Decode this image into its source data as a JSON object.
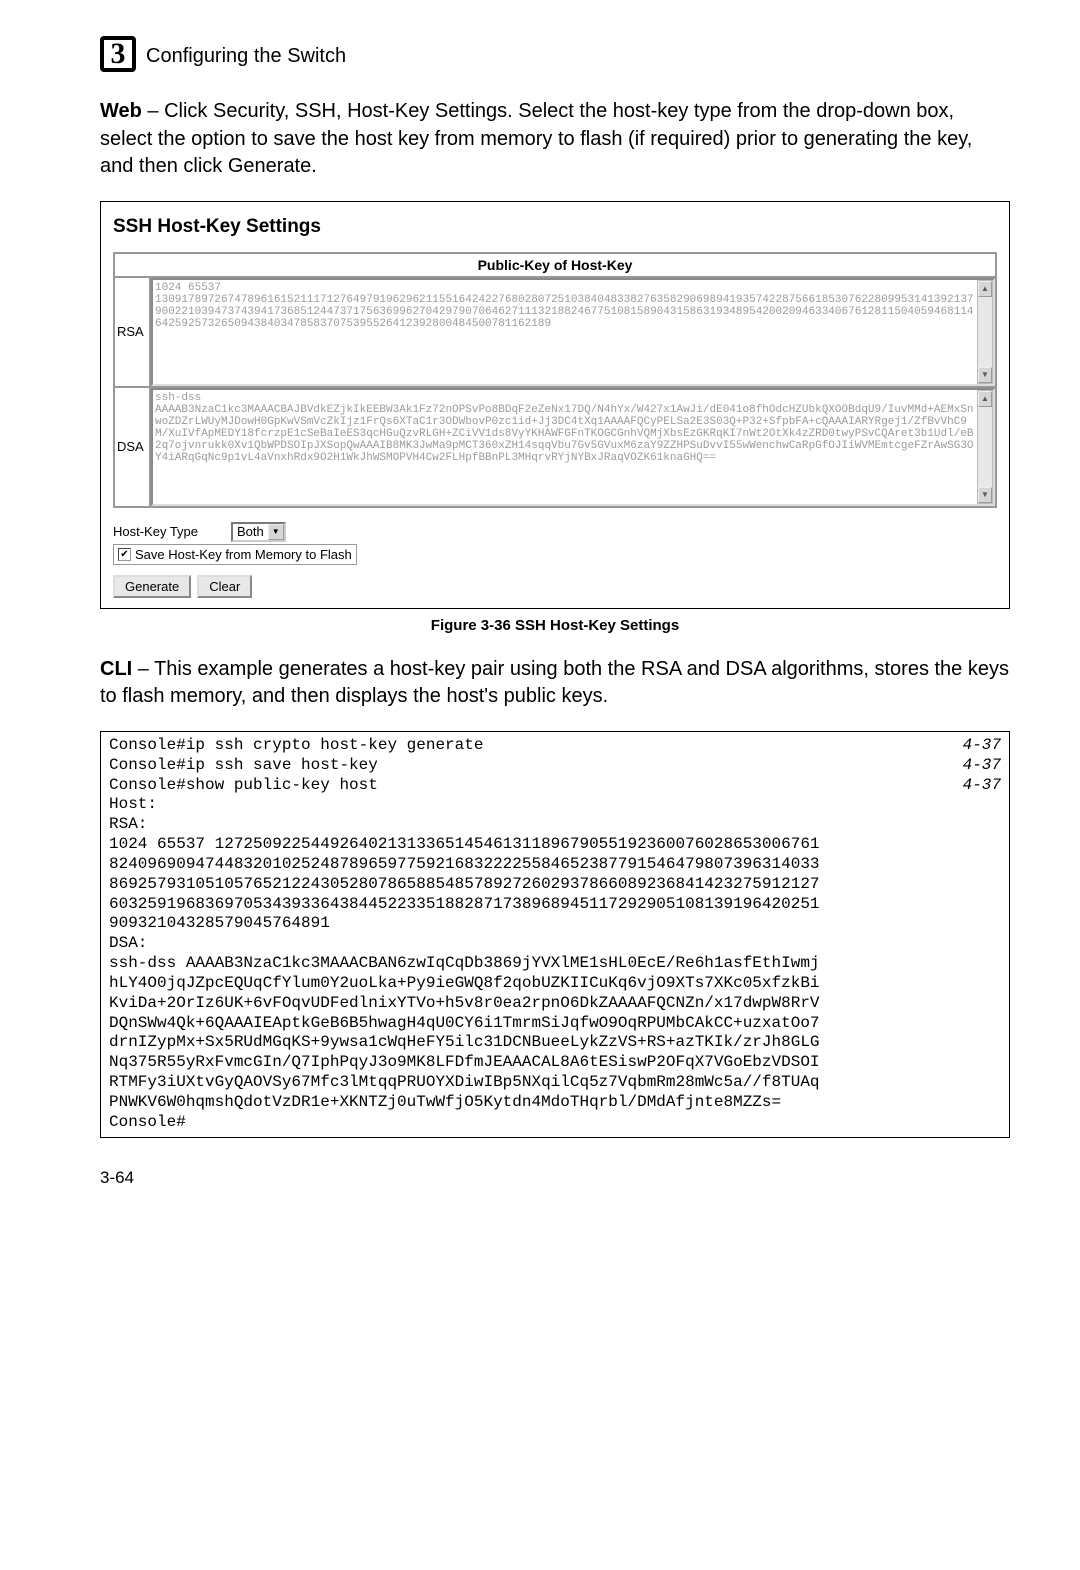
{
  "header": {
    "chapter_num": "3",
    "chapter_title": "Configuring the Switch"
  },
  "intro": {
    "label": "Web",
    "text": " – Click Security, SSH, Host-Key Settings. Select the host-key type from the drop-down box, select the option to save the host key from memory to flash (if required) prior to generating the key, and then click Generate."
  },
  "screenshot": {
    "title": "SSH Host-Key Settings",
    "table_header": "Public-Key of Host-Key",
    "rsa_label": "RSA",
    "dsa_label": "DSA",
    "rsa_value": "1024 65537\n13091789726747896161521117127649791962962115516424227680280725103840483382763582906989419357422875661853076228099531413921379002210394737439417368512447371756369962704297907064627111321882467751081589043158631934895420020946334067612811504059468114642592573265094384034785837075395526412392800484500781162189",
    "dsa_value": "ssh-dss\nAAAAB3NzaC1kc3MAAACBAJBVdkEZjkIkEEBW3Ak1Fz72nOPSvPo8BDqF2eZeNx17DQ/N4hYx/W427x1AwJi/dE041o8fhOdcHZUbkQXOOBdqU9/IuvMMd+AEMxSnwoZDZrLWUyMJDowH0GpKwVSmVcZkIjz1FrQs6XTaC1r3ODWbovP0zc1id+Jj3DC4tXq1AAAAFQCyPELSa2E3S03Q+P32+SfpbFA+cQAAAIARYRgej1/ZfBvVhC9M/XuIVfApMEDY18fcrzpE1cSeBaIeES3qcHGuQzvRLGH+ZCiVV1ds8VyYKHAWFGFnTKOGCGnhVQMjXbsEzGKRqKI7nWt2OtXk4zZRD0twyPSvCQAret3b1Udl/eB2q7ojvnrukk0Xv1QbWPDSOIpJXSopQwAAAIB8MK3JwMa9pMCT360xZH14sqqVbu7Gv5GVuxM6zaY9ZZHPSuDvvI55wWenchwCaRpGfOJIiWVMEmtcgeFZrAwSG3OY4iARqGqNc9p1vL4aVnxhRdx9O2H1WkJhWSMOPVH4Cw2FLHpfBBnPL3MHqrvRYjNYBxJRaqVOZK61knaGHQ==",
    "host_key_type_label": "Host-Key Type",
    "host_key_type_value": "Both",
    "save_label": "Save Host-Key from Memory to Flash",
    "generate_btn": "Generate",
    "clear_btn": "Clear"
  },
  "caption": "Figure 3-36  SSH Host-Key Settings",
  "cli": {
    "label": "CLI",
    "text": " – This example generates a host-key pair using both the RSA and DSA algorithms, stores the keys to flash memory, and then displays the host's public keys."
  },
  "code": {
    "lines": [
      {
        "l": "Console#ip ssh crypto host-key generate",
        "r": "4-37"
      },
      {
        "l": "Console#ip ssh save host-key",
        "r": "4-37"
      },
      {
        "l": "Console#show public-key host",
        "r": "4-37"
      },
      {
        "l": "Host:",
        "r": ""
      },
      {
        "l": "RSA:",
        "r": ""
      },
      {
        "l": "1024 65537 127250922544926402131336514546131189679055192360076028653006761",
        "r": ""
      },
      {
        "l": "82409690947448320102524878965977592168322225584652387791546479807396314033",
        "r": ""
      },
      {
        "l": "86925793105105765212243052807865885485789272602937866089236841423275912127",
        "r": ""
      },
      {
        "l": "60325919683697053439336438445223351882871738968945117292905108139196420251",
        "r": ""
      },
      {
        "l": "90932104328579045764891",
        "r": ""
      },
      {
        "l": "DSA:",
        "r": ""
      },
      {
        "l": "ssh-dss AAAAB3NzaC1kc3MAAACBAN6zwIqCqDb3869jYVXlME1sHL0EcE/Re6h1asfEthIwmj",
        "r": ""
      },
      {
        "l": "hLY4O0jqJZpcEQUqCfYlum0Y2uoLka+Py9ieGWQ8f2qobUZKIICuKq6vjO9XTs7XKc05xfzkBi",
        "r": ""
      },
      {
        "l": "KviDa+2OrIz6UK+6vFOqvUDFedlnixYTVo+h5v8r0ea2rpnO6DkZAAAAFQCNZn/x17dwpW8RrV",
        "r": ""
      },
      {
        "l": "DQnSWw4Qk+6QAAAIEAptkGeB6B5hwagH4qU0CY6i1TmrmSiJqfwO9OqRPUMbCAkCC+uzxatOo7",
        "r": ""
      },
      {
        "l": "drnIZypMx+Sx5RUdMGqKS+9ywsa1cWqHeFY5ilc31DCNBueeLykZzVS+RS+azTKIk/zrJh8GLG",
        "r": ""
      },
      {
        "l": "Nq375R55yRxFvmcGIn/Q7IphPqyJ3o9MK8LFDfmJEAAACAL8A6tESiswP2OFqX7VGoEbzVDSOI",
        "r": ""
      },
      {
        "l": "RTMFy3iUXtvGyQAOVSy67Mfc3lMtqqPRUOYXDiwIBp5NXqilCq5z7VqbmRm28mWc5a//f8TUAq",
        "r": ""
      },
      {
        "l": "PNWKV6W0hqmshQdotVzDR1e+XKNTZj0uTwWfjO5Kytdn4MdoTHqrbl/DMdAfjnte8MZZs=",
        "r": ""
      },
      {
        "l": "",
        "r": ""
      },
      {
        "l": "Console#",
        "r": ""
      }
    ]
  },
  "page_num": "3-64"
}
